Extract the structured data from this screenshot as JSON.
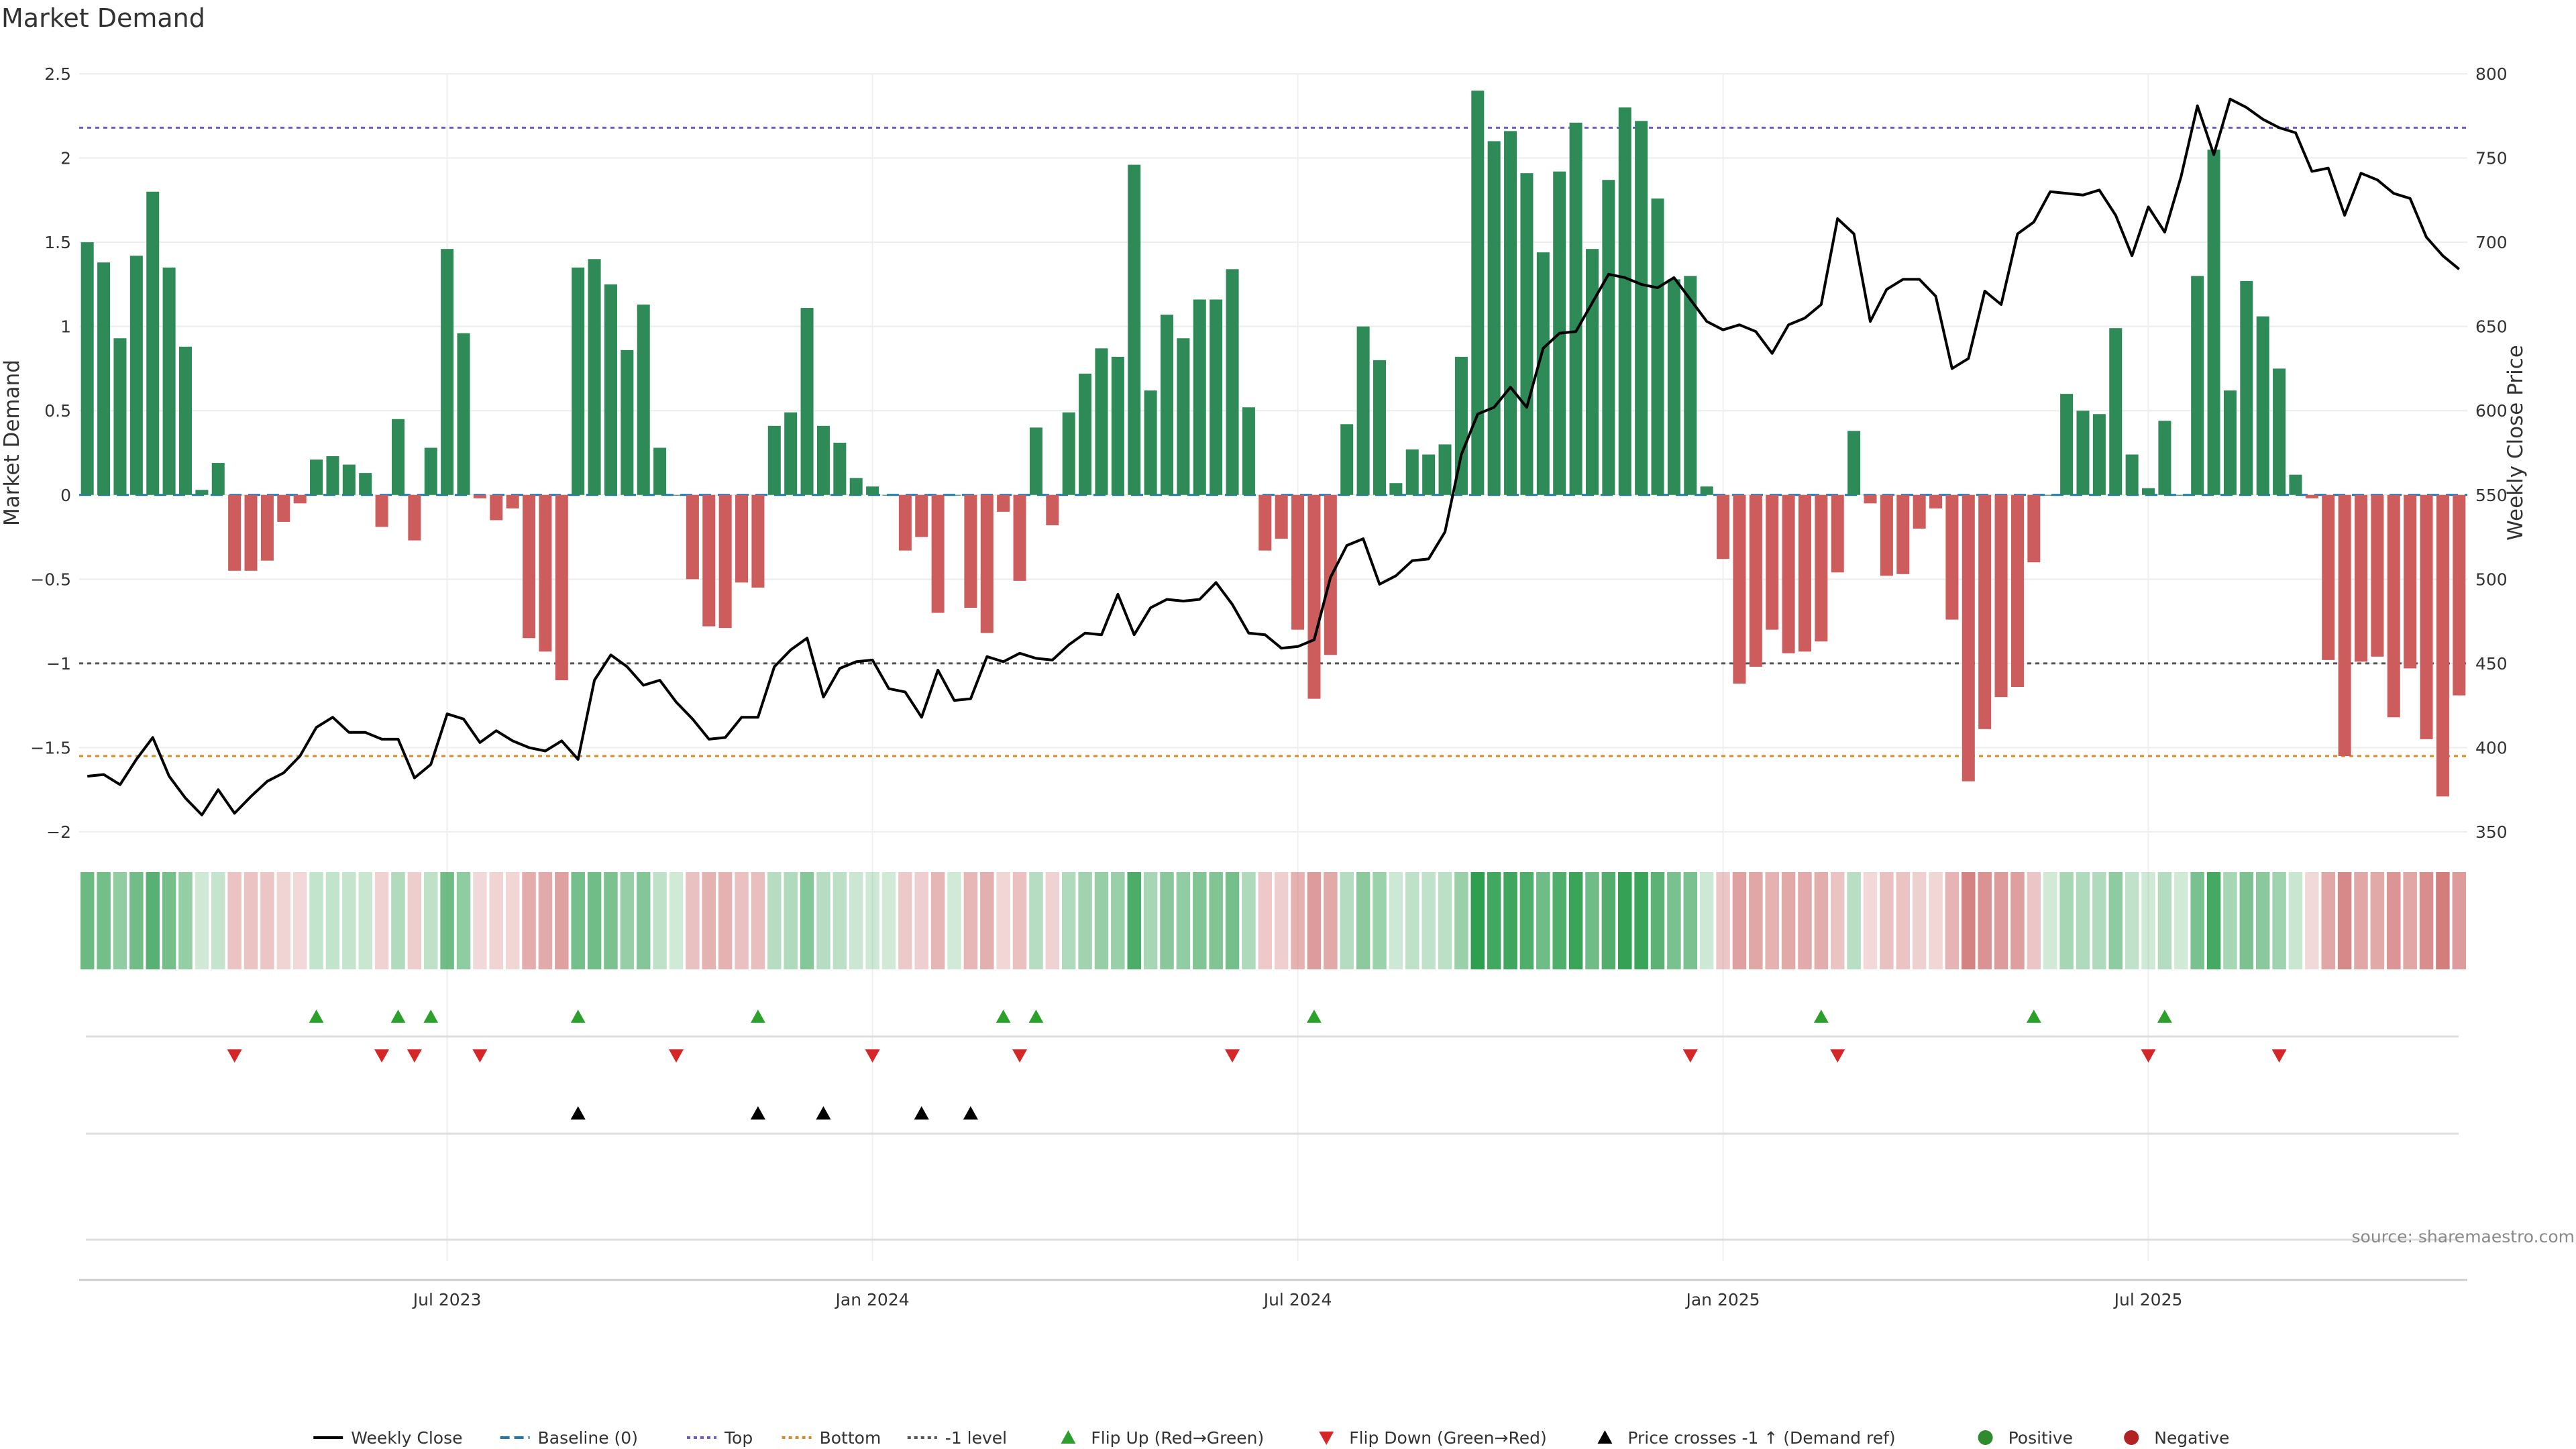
{
  "page": {
    "title": "Market Demand",
    "source": "source: sharemaestro.com"
  },
  "colors": {
    "positive_bar": "#2e8b57",
    "negative_bar": "#cd5c5c",
    "price_line": "#000000",
    "baseline": "#1f77b4",
    "top": "#6a5acd",
    "bottom": "#e08a1e",
    "minus1": "#555555",
    "flip_up": "#2ca02c",
    "flip_down": "#d62728",
    "cross": "#000000",
    "strip_pos": "#2e9e4f",
    "strip_neg": "#c85c5c"
  },
  "chart_data": {
    "type": "bar",
    "title": "Market Demand",
    "xlabel": "",
    "ylabel": "Market Demand",
    "y2label": "Weekly Close Price",
    "ylim": [
      -2.0,
      2.5
    ],
    "y2lim": [
      350,
      800
    ],
    "yticks": [
      -2,
      -1.5,
      -1,
      -0.5,
      0,
      0.5,
      1,
      1.5,
      2,
      2.5
    ],
    "ytick_labels": [
      "−2",
      "−1.5",
      "−1",
      "−0.5",
      "0",
      "0.5",
      "1",
      "1.5",
      "2",
      "2.5"
    ],
    "y2ticks": [
      350,
      400,
      450,
      500,
      550,
      600,
      650,
      700,
      750,
      800
    ],
    "y2tick_labels": [
      "350",
      "400",
      "450",
      "500",
      "550",
      "600",
      "650",
      "700",
      "750",
      "800"
    ],
    "x_ticks": [
      {
        "week": 22,
        "label": "Jul 2023"
      },
      {
        "week": 48,
        "label": "Jan 2024"
      },
      {
        "week": 74,
        "label": "Jul 2024"
      },
      {
        "week": 100,
        "label": "Jan 2025"
      },
      {
        "week": 126,
        "label": "Jul 2025"
      }
    ],
    "levels": {
      "top": 2.18,
      "bottom": -1.55,
      "minus1": -1.0,
      "baseline": 0
    },
    "series": [
      {
        "name": "Market Demand",
        "axis": "left",
        "values": [
          1.5,
          1.38,
          0.93,
          1.42,
          1.8,
          1.35,
          0.88,
          0.03,
          0.19,
          -0.45,
          -0.45,
          -0.39,
          -0.16,
          -0.05,
          0.21,
          0.23,
          0.18,
          0.13,
          -0.19,
          0.45,
          -0.27,
          0.28,
          1.46,
          0.96,
          -0.02,
          -0.15,
          -0.08,
          -0.85,
          -0.93,
          -1.1,
          1.35,
          1.4,
          1.25,
          0.86,
          1.13,
          0.28,
          0,
          -0.5,
          -0.78,
          -0.79,
          -0.52,
          -0.55,
          0.41,
          0.49,
          1.11,
          0.41,
          0.31,
          0.1,
          0.05,
          0,
          -0.33,
          -0.25,
          -0.7,
          0,
          -0.67,
          -0.82,
          -0.1,
          -0.51,
          0.4,
          -0.18,
          0.49,
          0.72,
          0.87,
          0.82,
          1.96,
          0.62,
          1.07,
          0.93,
          1.16,
          1.16,
          1.34,
          0.52,
          -0.33,
          -0.26,
          -0.8,
          -1.21,
          -0.95,
          0.42,
          1.0,
          0.8,
          0.07,
          0.27,
          0.24,
          0.3,
          0.82,
          2.4,
          2.1,
          2.16,
          1.91,
          1.44,
          1.92,
          2.21,
          1.46,
          1.87,
          2.3,
          2.22,
          1.76,
          1.28,
          1.3,
          0.05,
          -0.38,
          -1.12,
          -1.02,
          -0.8,
          -0.94,
          -0.93,
          -0.87,
          -0.46,
          0.38,
          -0.05,
          -0.48,
          -0.47,
          -0.2,
          -0.08,
          -0.74,
          -1.7,
          -1.39,
          -1.2,
          -1.14,
          -0.4,
          0,
          0.6,
          0.5,
          0.48,
          0.99,
          0.24,
          0.04,
          0.44,
          0,
          1.3,
          2.05,
          0.62,
          1.27,
          1.06,
          0.75,
          0.12,
          -0.02,
          -0.98,
          -1.55,
          -0.99,
          -0.96,
          -1.32,
          -1.03,
          -1.45,
          -1.79,
          -1.19
        ]
      },
      {
        "name": "Weekly Close",
        "axis": "right",
        "values": [
          383,
          384,
          378,
          393,
          406,
          383,
          370,
          360,
          375,
          361,
          371,
          380,
          385,
          395,
          412,
          418,
          409,
          409,
          405,
          405,
          382,
          390,
          420,
          417,
          403,
          410,
          404,
          400,
          398,
          404,
          393,
          440,
          455,
          448,
          437,
          440,
          427,
          417,
          405,
          406,
          418,
          418,
          448,
          458,
          465,
          430,
          447,
          451,
          452,
          435,
          433,
          418,
          446,
          428,
          429,
          454,
          451,
          456,
          453,
          452,
          461,
          468,
          467,
          491,
          467,
          483,
          488,
          487,
          488,
          498,
          485,
          468,
          467,
          459,
          460,
          464,
          501,
          520,
          524,
          497,
          502,
          511,
          512,
          528,
          574,
          598,
          602,
          614,
          602,
          637,
          646,
          647,
          664,
          681,
          679,
          675,
          673,
          679,
          666,
          653,
          648,
          651,
          647,
          634,
          651,
          655,
          663,
          714,
          705,
          653,
          672,
          678,
          678,
          668,
          625,
          631,
          671,
          663,
          705,
          712,
          730,
          729,
          728,
          731,
          716,
          692,
          721,
          706,
          739,
          781,
          752,
          785,
          780,
          773,
          768,
          765,
          742,
          744,
          716,
          741,
          737,
          729,
          726,
          703,
          692,
          684
        ]
      }
    ],
    "flip_up_weeks": [
      14,
      19,
      21,
      30,
      41,
      56,
      58,
      75,
      106,
      119,
      127
    ],
    "flip_down_weeks": [
      9,
      18,
      20,
      24,
      36,
      48,
      57,
      70,
      98,
      107,
      126,
      134
    ],
    "cross_weeks": [
      30,
      41,
      45,
      51,
      54
    ],
    "legend": [
      {
        "label": "Weekly Close",
        "kind": "line",
        "color": "#000000",
        "dash": "solid"
      },
      {
        "label": "Baseline (0)",
        "kind": "line",
        "color": "#1f77b4",
        "dash": "long"
      },
      {
        "label": "Top",
        "kind": "line",
        "color": "#6a5acd",
        "dash": "dot"
      },
      {
        "label": "Bottom",
        "kind": "line",
        "color": "#e08a1e",
        "dash": "dot"
      },
      {
        "label": "-1 level",
        "kind": "line",
        "color": "#555555",
        "dash": "dot"
      },
      {
        "label": "Flip Up (Red→Green)",
        "kind": "tri-up",
        "color": "#2ca02c"
      },
      {
        "label": "Flip Down (Green→Red)",
        "kind": "tri-down",
        "color": "#d62728"
      },
      {
        "label": "Price crosses -1 ↑ (Demand ref)",
        "kind": "tri-up",
        "color": "#000000"
      },
      {
        "label": "Positive",
        "kind": "dot",
        "color": "#2e8b2e"
      },
      {
        "label": "Negative",
        "kind": "dot",
        "color": "#b22222"
      }
    ],
    "legend_position": "bottom-center"
  }
}
